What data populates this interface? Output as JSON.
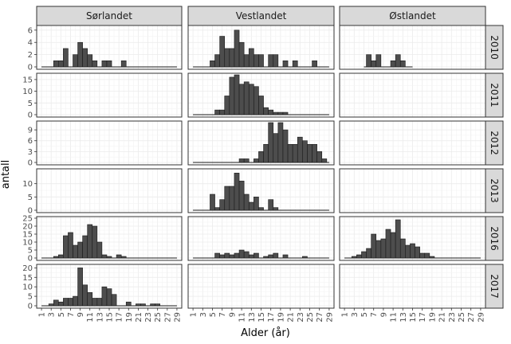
{
  "chart_data": {
    "type": "bar",
    "subtype": "faceted-histogram",
    "xlabel": "Alder (år)",
    "ylabel": "antall",
    "columns": [
      "Sørlandet",
      "Vestlandet",
      "Østlandet"
    ],
    "rows": [
      "2010",
      "2011",
      "2012",
      "2013",
      "2016",
      "2017"
    ],
    "x_range": [
      0,
      30
    ],
    "x_tick_labels": [
      "1",
      "3",
      "5",
      "7",
      "9",
      "11",
      "13",
      "15",
      "17",
      "19",
      "21",
      "23",
      "25",
      "27",
      "29"
    ],
    "bar_fill": "#4d4d4d",
    "bar_stroke": "#1a1a1a",
    "strip_fill": "#d9d9d9",
    "row_axes": [
      {
        "year": "2010",
        "ylim": [
          0,
          6.5
        ],
        "ticks": [
          0,
          2,
          4,
          6
        ]
      },
      {
        "year": "2011",
        "ylim": [
          0,
          17
        ],
        "ticks": [
          0,
          5,
          10,
          15
        ]
      },
      {
        "year": "2012",
        "ylim": [
          0,
          11
        ],
        "ticks": [
          0,
          3,
          6,
          9
        ]
      },
      {
        "year": "2013",
        "ylim": [
          0,
          15
        ],
        "ticks": [
          0,
          5,
          10
        ]
      },
      {
        "year": "2016",
        "ylim": [
          0,
          25
        ],
        "ticks": [
          0,
          5,
          10,
          15,
          20,
          25
        ]
      },
      {
        "year": "2017",
        "ylim": [
          0,
          21
        ],
        "ticks": [
          0,
          5,
          10,
          15,
          20
        ]
      }
    ],
    "panels": [
      {
        "column": "Sørlandet",
        "row": "2010",
        "x_span": [
          1,
          29
        ],
        "bars": [
          {
            "x": 4,
            "y": 1
          },
          {
            "x": 5,
            "y": 1
          },
          {
            "x": 6,
            "y": 3
          },
          {
            "x": 8,
            "y": 2
          },
          {
            "x": 9,
            "y": 4
          },
          {
            "x": 10,
            "y": 3
          },
          {
            "x": 11,
            "y": 2
          },
          {
            "x": 12,
            "y": 1
          },
          {
            "x": 14,
            "y": 1
          },
          {
            "x": 15,
            "y": 1
          },
          {
            "x": 18,
            "y": 1
          }
        ]
      },
      {
        "column": "Vestlandet",
        "row": "2010",
        "x_span": [
          1,
          29
        ],
        "bars": [
          {
            "x": 5,
            "y": 1
          },
          {
            "x": 6,
            "y": 2
          },
          {
            "x": 7,
            "y": 5
          },
          {
            "x": 8,
            "y": 3
          },
          {
            "x": 9,
            "y": 3
          },
          {
            "x": 10,
            "y": 6
          },
          {
            "x": 11,
            "y": 4
          },
          {
            "x": 12,
            "y": 2
          },
          {
            "x": 13,
            "y": 3
          },
          {
            "x": 14,
            "y": 2
          },
          {
            "x": 15,
            "y": 2
          },
          {
            "x": 17,
            "y": 2
          },
          {
            "x": 18,
            "y": 2
          },
          {
            "x": 20,
            "y": 1
          },
          {
            "x": 22,
            "y": 1
          },
          {
            "x": 26,
            "y": 1
          }
        ]
      },
      {
        "column": "Østlandet",
        "row": "2010",
        "x_span": [
          5,
          15
        ],
        "bars": [
          {
            "x": 6,
            "y": 2
          },
          {
            "x": 7,
            "y": 1
          },
          {
            "x": 8,
            "y": 2
          },
          {
            "x": 11,
            "y": 1
          },
          {
            "x": 12,
            "y": 2
          },
          {
            "x": 13,
            "y": 1
          }
        ]
      },
      {
        "column": "Sørlandet",
        "row": "2011",
        "bars": []
      },
      {
        "column": "Vestlandet",
        "row": "2011",
        "x_span": [
          1,
          29
        ],
        "bars": [
          {
            "x": 6,
            "y": 2
          },
          {
            "x": 7,
            "y": 2
          },
          {
            "x": 8,
            "y": 8
          },
          {
            "x": 9,
            "y": 16
          },
          {
            "x": 10,
            "y": 17
          },
          {
            "x": 11,
            "y": 13
          },
          {
            "x": 12,
            "y": 14
          },
          {
            "x": 13,
            "y": 13
          },
          {
            "x": 14,
            "y": 12
          },
          {
            "x": 15,
            "y": 8
          },
          {
            "x": 16,
            "y": 3
          },
          {
            "x": 17,
            "y": 2
          },
          {
            "x": 18,
            "y": 1
          },
          {
            "x": 19,
            "y": 1
          },
          {
            "x": 20,
            "y": 1
          }
        ]
      },
      {
        "column": "Østlandet",
        "row": "2011",
        "bars": []
      },
      {
        "column": "Sørlandet",
        "row": "2012",
        "bars": []
      },
      {
        "column": "Vestlandet",
        "row": "2012",
        "x_span": [
          1,
          29
        ],
        "bars": [
          {
            "x": 11,
            "y": 1
          },
          {
            "x": 12,
            "y": 1
          },
          {
            "x": 14,
            "y": 1
          },
          {
            "x": 15,
            "y": 3
          },
          {
            "x": 16,
            "y": 5
          },
          {
            "x": 17,
            "y": 11
          },
          {
            "x": 18,
            "y": 8
          },
          {
            "x": 19,
            "y": 11
          },
          {
            "x": 20,
            "y": 9
          },
          {
            "x": 21,
            "y": 5
          },
          {
            "x": 22,
            "y": 5
          },
          {
            "x": 23,
            "y": 7
          },
          {
            "x": 24,
            "y": 6
          },
          {
            "x": 25,
            "y": 5
          },
          {
            "x": 26,
            "y": 5
          },
          {
            "x": 27,
            "y": 3
          },
          {
            "x": 28,
            "y": 1
          }
        ]
      },
      {
        "column": "Østlandet",
        "row": "2012",
        "bars": []
      },
      {
        "column": "Sørlandet",
        "row": "2013",
        "bars": []
      },
      {
        "column": "Vestlandet",
        "row": "2013",
        "x_span": [
          1,
          29
        ],
        "bars": [
          {
            "x": 5,
            "y": 6
          },
          {
            "x": 6,
            "y": 1
          },
          {
            "x": 7,
            "y": 4
          },
          {
            "x": 8,
            "y": 9
          },
          {
            "x": 9,
            "y": 9
          },
          {
            "x": 10,
            "y": 14
          },
          {
            "x": 11,
            "y": 11
          },
          {
            "x": 12,
            "y": 6
          },
          {
            "x": 13,
            "y": 3
          },
          {
            "x": 14,
            "y": 5
          },
          {
            "x": 15,
            "y": 1
          },
          {
            "x": 17,
            "y": 4
          },
          {
            "x": 18,
            "y": 1
          }
        ]
      },
      {
        "column": "Østlandet",
        "row": "2013",
        "bars": []
      },
      {
        "column": "Sørlandet",
        "row": "2016",
        "x_span": [
          1,
          29
        ],
        "bars": [
          {
            "x": 4,
            "y": 1
          },
          {
            "x": 5,
            "y": 2
          },
          {
            "x": 6,
            "y": 14
          },
          {
            "x": 7,
            "y": 16
          },
          {
            "x": 8,
            "y": 8
          },
          {
            "x": 9,
            "y": 10
          },
          {
            "x": 10,
            "y": 14
          },
          {
            "x": 11,
            "y": 21
          },
          {
            "x": 12,
            "y": 20
          },
          {
            "x": 13,
            "y": 10
          },
          {
            "x": 14,
            "y": 2
          },
          {
            "x": 15,
            "y": 1
          },
          {
            "x": 17,
            "y": 2
          },
          {
            "x": 18,
            "y": 1
          }
        ]
      },
      {
        "column": "Vestlandet",
        "row": "2016",
        "x_span": [
          1,
          29
        ],
        "bars": [
          {
            "x": 6,
            "y": 3
          },
          {
            "x": 7,
            "y": 2
          },
          {
            "x": 8,
            "y": 3
          },
          {
            "x": 9,
            "y": 2
          },
          {
            "x": 10,
            "y": 3
          },
          {
            "x": 11,
            "y": 5
          },
          {
            "x": 12,
            "y": 4
          },
          {
            "x": 13,
            "y": 2
          },
          {
            "x": 14,
            "y": 3
          },
          {
            "x": 16,
            "y": 1
          },
          {
            "x": 17,
            "y": 2
          },
          {
            "x": 18,
            "y": 3
          },
          {
            "x": 20,
            "y": 2
          },
          {
            "x": 24,
            "y": 1
          }
        ]
      },
      {
        "column": "Østlandet",
        "row": "2016",
        "x_span": [
          1,
          29
        ],
        "bars": [
          {
            "x": 3,
            "y": 1
          },
          {
            "x": 4,
            "y": 2
          },
          {
            "x": 5,
            "y": 4
          },
          {
            "x": 6,
            "y": 6
          },
          {
            "x": 7,
            "y": 15
          },
          {
            "x": 8,
            "y": 11
          },
          {
            "x": 9,
            "y": 12
          },
          {
            "x": 10,
            "y": 18
          },
          {
            "x": 11,
            "y": 16
          },
          {
            "x": 12,
            "y": 24
          },
          {
            "x": 13,
            "y": 12
          },
          {
            "x": 14,
            "y": 8
          },
          {
            "x": 15,
            "y": 9
          },
          {
            "x": 16,
            "y": 7
          },
          {
            "x": 17,
            "y": 3
          },
          {
            "x": 18,
            "y": 3
          },
          {
            "x": 19,
            "y": 1
          }
        ]
      },
      {
        "column": "Sørlandet",
        "row": "2017",
        "x_span": [
          1,
          29
        ],
        "bars": [
          {
            "x": 3,
            "y": 1
          },
          {
            "x": 4,
            "y": 3
          },
          {
            "x": 5,
            "y": 2
          },
          {
            "x": 6,
            "y": 4
          },
          {
            "x": 7,
            "y": 4
          },
          {
            "x": 8,
            "y": 5
          },
          {
            "x": 9,
            "y": 20
          },
          {
            "x": 10,
            "y": 11
          },
          {
            "x": 11,
            "y": 7
          },
          {
            "x": 12,
            "y": 4
          },
          {
            "x": 13,
            "y": 4
          },
          {
            "x": 14,
            "y": 10
          },
          {
            "x": 15,
            "y": 9
          },
          {
            "x": 16,
            "y": 6
          },
          {
            "x": 19,
            "y": 2
          },
          {
            "x": 21,
            "y": 1
          },
          {
            "x": 22,
            "y": 1
          },
          {
            "x": 24,
            "y": 1
          },
          {
            "x": 25,
            "y": 1
          }
        ]
      },
      {
        "column": "Vestlandet",
        "row": "2017",
        "bars": []
      },
      {
        "column": "Østlandet",
        "row": "2017",
        "bars": []
      }
    ]
  }
}
